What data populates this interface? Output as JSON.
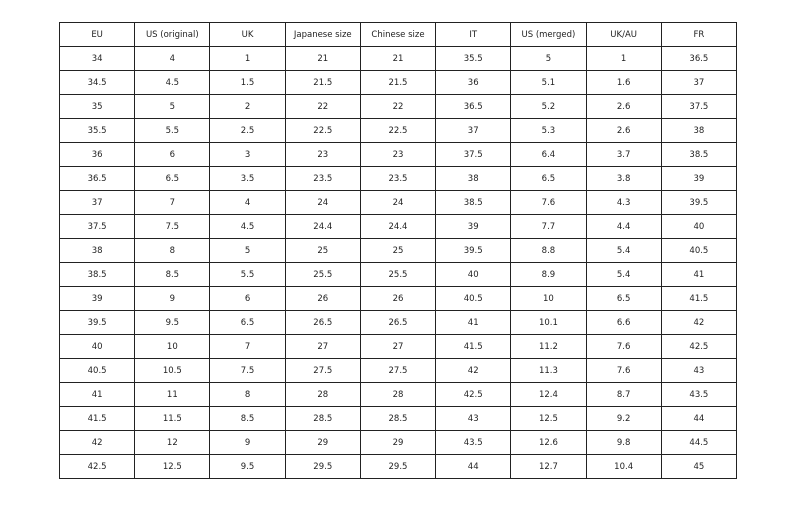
{
  "table": {
    "header": [
      "EU",
      "US (original)",
      "UK",
      "Japanese size",
      "Chinese size",
      "IT",
      "US (merged)",
      "UK/AU",
      "FR"
    ],
    "rows": [
      [
        "34",
        "4",
        "1",
        "21",
        "21",
        "35.5",
        "5",
        "1",
        "36.5"
      ],
      [
        "34.5",
        "4.5",
        "1.5",
        "21.5",
        "21.5",
        "36",
        "5.1",
        "1.6",
        "37"
      ],
      [
        "35",
        "5",
        "2",
        "22",
        "22",
        "36.5",
        "5.2",
        "2.6",
        "37.5"
      ],
      [
        "35.5",
        "5.5",
        "2.5",
        "22.5",
        "22.5",
        "37",
        "5.3",
        "2.6",
        "38"
      ],
      [
        "36",
        "6",
        "3",
        "23",
        "23",
        "37.5",
        "6.4",
        "3.7",
        "38.5"
      ],
      [
        "36.5",
        "6.5",
        "3.5",
        "23.5",
        "23.5",
        "38",
        "6.5",
        "3.8",
        "39"
      ],
      [
        "37",
        "7",
        "4",
        "24",
        "24",
        "38.5",
        "7.6",
        "4.3",
        "39.5"
      ],
      [
        "37.5",
        "7.5",
        "4.5",
        "24.4",
        "24.4",
        "39",
        "7.7",
        "4.4",
        "40"
      ],
      [
        "38",
        "8",
        "5",
        "25",
        "25",
        "39.5",
        "8.8",
        "5.4",
        "40.5"
      ],
      [
        "38.5",
        "8.5",
        "5.5",
        "25.5",
        "25.5",
        "40",
        "8.9",
        "5.4",
        "41"
      ],
      [
        "39",
        "9",
        "6",
        "26",
        "26",
        "40.5",
        "10",
        "6.5",
        "41.5"
      ],
      [
        "39.5",
        "9.5",
        "6.5",
        "26.5",
        "26.5",
        "41",
        "10.1",
        "6.6",
        "42"
      ],
      [
        "40",
        "10",
        "7",
        "27",
        "27",
        "41.5",
        "11.2",
        "7.6",
        "42.5"
      ],
      [
        "40.5",
        "10.5",
        "7.5",
        "27.5",
        "27.5",
        "42",
        "11.3",
        "7.6",
        "43"
      ],
      [
        "41",
        "11",
        "8",
        "28",
        "28",
        "42.5",
        "12.4",
        "8.7",
        "43.5"
      ],
      [
        "41.5",
        "11.5",
        "8.5",
        "28.5",
        "28.5",
        "43",
        "12.5",
        "9.2",
        "44"
      ],
      [
        "42",
        "12",
        "9",
        "29",
        "29",
        "43.5",
        "12.6",
        "9.8",
        "44.5"
      ],
      [
        "42.5",
        "12.5",
        "9.5",
        "29.5",
        "29.5",
        "44",
        "12.7",
        "10.4",
        "45"
      ]
    ]
  }
}
